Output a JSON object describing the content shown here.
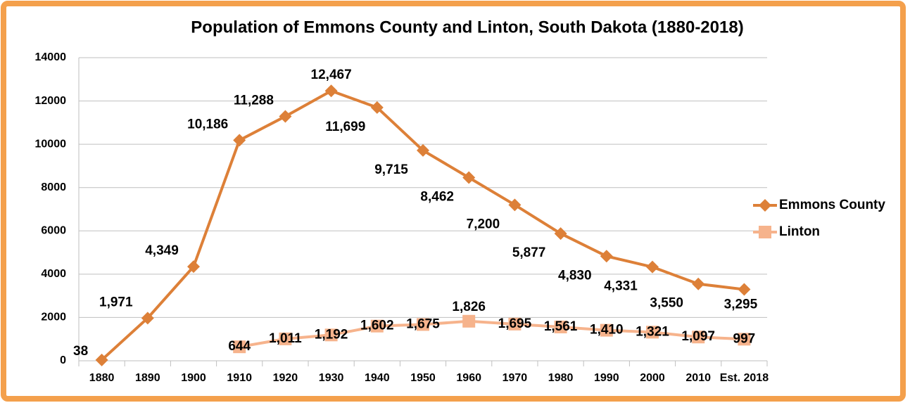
{
  "chart_data": {
    "type": "line",
    "title": "Population of Emmons County and Linton, South Dakota (1880-2018)",
    "categories": [
      "1880",
      "1890",
      "1900",
      "1910",
      "1920",
      "1930",
      "1940",
      "1950",
      "1960",
      "1970",
      "1980",
      "1990",
      "2000",
      "2010",
      "Est. 2018"
    ],
    "series": [
      {
        "name": "Emmons County",
        "color": "#dd8038",
        "marker": "diamond",
        "values": [
          38,
          1971,
          4349,
          10186,
          11288,
          12467,
          11699,
          9715,
          8462,
          7200,
          5877,
          4830,
          4331,
          3550,
          3295
        ],
        "value_labels": [
          "38",
          "1,971",
          "4,349",
          "10,186",
          "11,288",
          "12,467",
          "11,699",
          "9,715",
          "8,462",
          "7,200",
          "5,877",
          "4,830",
          "4,331",
          "3,550",
          "3,295"
        ]
      },
      {
        "name": "Linton",
        "color": "#f6b38c",
        "marker": "square",
        "values": [
          null,
          null,
          null,
          644,
          1011,
          1192,
          1602,
          1675,
          1826,
          1695,
          1561,
          1410,
          1321,
          1097,
          997
        ],
        "value_labels": [
          null,
          null,
          null,
          "644",
          "1,011",
          "1,192",
          "1,602",
          "1,675",
          "1,826",
          "1,695",
          "1,561",
          "1,410",
          "1,321",
          "1,097",
          "997"
        ]
      }
    ],
    "ylim": [
      0,
      14000
    ],
    "yticks": [
      0,
      2000,
      4000,
      6000,
      8000,
      10000,
      12000,
      14000
    ],
    "grid": true,
    "legend": "right"
  }
}
